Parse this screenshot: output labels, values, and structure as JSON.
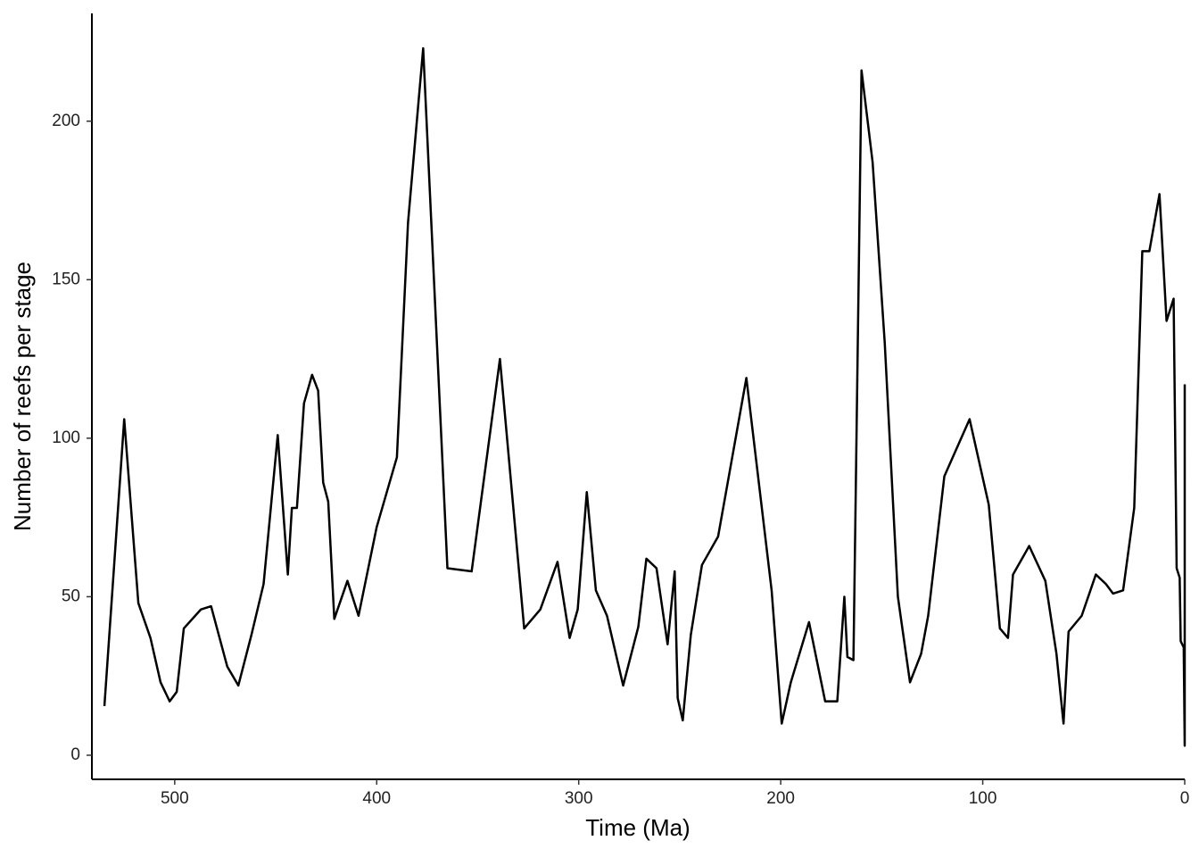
{
  "chart_data": {
    "type": "line",
    "x_label": "Time (Ma)",
    "y_label": "Number of reefs per stage",
    "x": [
      534.8,
      525,
      518,
      512,
      507,
      502.5,
      499,
      495.5,
      487,
      482,
      474,
      468.5,
      462,
      456,
      449,
      444,
      442,
      439.5,
      436,
      432,
      429,
      426.5,
      424,
      421,
      414.5,
      409,
      400,
      390,
      384.5,
      377,
      365,
      353,
      339,
      327,
      319,
      310.5,
      304.5,
      300.5,
      296,
      291.5,
      286,
      278,
      270.5,
      266.5,
      261.5,
      256,
      252.5,
      251,
      248.5,
      244.5,
      239,
      231,
      217,
      204.5,
      199.5,
      195,
      186,
      178,
      172,
      168.5,
      167,
      164,
      160,
      154.5,
      148.5,
      142,
      136,
      130.5,
      127,
      119,
      106.5,
      97,
      91.5,
      87.5,
      85,
      77,
      69,
      63.5,
      60,
      57.5,
      51,
      44,
      39,
      35.5,
      30.5,
      25,
      21,
      17.5,
      12.5,
      9,
      5.5,
      4,
      2.5,
      2,
      0.5,
      0.01,
      0
    ],
    "series": [
      {
        "color": "#000000",
        "values": [
          15.5,
          106,
          48,
          37,
          23,
          17,
          20,
          40,
          46,
          47,
          28,
          22,
          38,
          54,
          101,
          57,
          78,
          78,
          111,
          120,
          115,
          86,
          80,
          43,
          55,
          44,
          72,
          94,
          168,
          223,
          59,
          58,
          125,
          40,
          46,
          61,
          37,
          46,
          83,
          52,
          44,
          22,
          40.5,
          62,
          59,
          35,
          58,
          18,
          11,
          38,
          60,
          69,
          119,
          52,
          10,
          23,
          42,
          17,
          17,
          50,
          31,
          30,
          216,
          187,
          130,
          50,
          23,
          32,
          44,
          88,
          106,
          79,
          40,
          37,
          57,
          66,
          55,
          32,
          10,
          39,
          44,
          57,
          54,
          51,
          52,
          78,
          159,
          159,
          177,
          137,
          144,
          59,
          56,
          36,
          34,
          3,
          117
        ]
      }
    ],
    "xlim": [
      541,
      0
    ],
    "ylim": [
      -7.6,
      234
    ],
    "xticks": [
      500,
      400,
      300,
      200,
      100,
      0
    ],
    "yticks": [
      0,
      50,
      100,
      150,
      200
    ],
    "grid": false
  }
}
